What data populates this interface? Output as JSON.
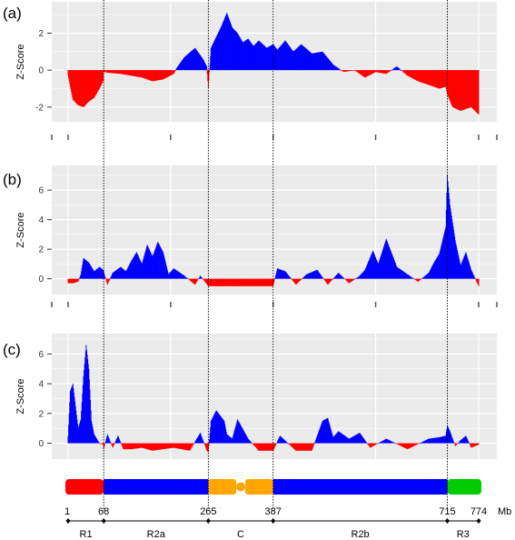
{
  "figure": {
    "colors": {
      "positive": "#0000ff",
      "negative": "#ff0000",
      "panel_bg": "#ebebeb",
      "grid": "#ffffff",
      "guide": "#000000",
      "region_colors": {
        "red": "#ff0000",
        "blue": "#0000ff",
        "orange": "#ffa500",
        "green": "#00cc00"
      }
    }
  },
  "chart_data": [
    {
      "panel": "(a)",
      "type": "area",
      "ylabel": "Z-Score",
      "yticks": [
        2,
        0,
        -2
      ],
      "ylim": [
        -2.5,
        3.4
      ],
      "xlim": [
        1,
        774
      ],
      "grid": true,
      "series": [
        {
          "x": [
            1,
            10,
            20,
            30,
            40,
            50,
            60,
            67,
            68,
            80,
            100,
            120,
            140,
            160,
            180,
            200,
            205,
            220,
            240,
            255,
            262,
            265,
            270,
            280,
            290,
            300,
            310,
            320,
            330,
            340,
            350,
            360,
            375,
            387,
            395,
            410,
            425,
            440,
            460,
            480,
            500,
            520,
            540,
            560,
            580,
            600,
            620,
            640,
            660,
            680,
            700,
            712,
            715,
            725,
            740,
            760,
            774
          ],
          "y": [
            -0.3,
            -1.6,
            -1.9,
            -2.0,
            -1.7,
            -1.5,
            -1.0,
            -0.6,
            -0.1,
            -0.15,
            -0.2,
            -0.3,
            -0.4,
            -0.6,
            -0.5,
            -0.2,
            0.1,
            0.7,
            1.2,
            0.6,
            0.2,
            -1.0,
            1.2,
            1.8,
            2.4,
            3.1,
            2.3,
            2.0,
            1.5,
            1.7,
            1.3,
            1.6,
            1.2,
            1.4,
            1.1,
            1.6,
            1.0,
            1.4,
            0.9,
            1.0,
            0.3,
            -0.1,
            0.0,
            -0.4,
            -0.1,
            -0.2,
            0.2,
            -0.3,
            -0.6,
            -0.8,
            -1.0,
            -0.9,
            -1.3,
            -2.0,
            -2.2,
            -2.0,
            -2.4
          ]
        }
      ]
    },
    {
      "panel": "(b)",
      "type": "area",
      "ylabel": "Z-Score",
      "yticks": [
        6,
        4,
        2,
        0
      ],
      "ylim": [
        -0.7,
        7.3
      ],
      "xlim": [
        1,
        774
      ],
      "grid": true,
      "series": [
        {
          "x": [
            1,
            10,
            20,
            25,
            30,
            40,
            50,
            60,
            67,
            75,
            85,
            100,
            110,
            120,
            130,
            140,
            150,
            160,
            170,
            180,
            190,
            200,
            220,
            240,
            250,
            265,
            300,
            350,
            387,
            395,
            410,
            430,
            450,
            470,
            490,
            510,
            530,
            550,
            560,
            575,
            585,
            600,
            620,
            640,
            660,
            680,
            690,
            700,
            712,
            715,
            720,
            730,
            740,
            750,
            760,
            774
          ],
          "y": [
            -0.3,
            -0.3,
            -0.2,
            0.3,
            1.4,
            1.1,
            0.5,
            0.8,
            0.6,
            -0.4,
            0.4,
            0.8,
            0.5,
            1.2,
            1.8,
            1.0,
            2.3,
            1.5,
            2.5,
            1.8,
            0.3,
            0.7,
            0.2,
            -0.4,
            0.2,
            -0.5,
            -0.5,
            -0.5,
            -0.5,
            0.7,
            0.5,
            -0.4,
            0.3,
            0.6,
            -0.4,
            0.4,
            -0.3,
            0.2,
            0.6,
            1.9,
            1.0,
            2.7,
            0.8,
            0.3,
            -0.2,
            0.4,
            1.1,
            1.7,
            3.5,
            7.0,
            5.0,
            2.6,
            0.9,
            1.8,
            0.6,
            -0.5
          ]
        }
      ]
    },
    {
      "panel": "(c)",
      "type": "area",
      "ylabel": "Z-Score",
      "yticks": [
        6,
        4,
        2,
        0
      ],
      "ylim": [
        -0.7,
        7.0
      ],
      "xlim": [
        1,
        774
      ],
      "grid": true,
      "series": [
        {
          "x": [
            1,
            5,
            10,
            15,
            20,
            25,
            30,
            35,
            40,
            45,
            50,
            55,
            60,
            67,
            68,
            75,
            85,
            95,
            105,
            120,
            140,
            160,
            180,
            200,
            230,
            250,
            262,
            265,
            270,
            280,
            295,
            300,
            310,
            320,
            340,
            360,
            387,
            400,
            430,
            460,
            480,
            490,
            500,
            510,
            530,
            550,
            570,
            600,
            640,
            680,
            700,
            712,
            715,
            720,
            730,
            740,
            750,
            760,
            774
          ],
          "y": [
            0.5,
            3.5,
            4.0,
            2.5,
            1.0,
            1.6,
            4.5,
            6.6,
            5.0,
            1.5,
            0.6,
            0.3,
            0.0,
            -0.1,
            -0.4,
            0.6,
            -0.3,
            0.5,
            -0.4,
            -0.4,
            -0.3,
            -0.5,
            -0.4,
            -0.3,
            -0.5,
            0.7,
            -0.5,
            -0.6,
            1.5,
            2.2,
            1.5,
            0.6,
            0.3,
            1.6,
            0.3,
            -0.5,
            -0.5,
            0.5,
            -0.5,
            -0.5,
            1.5,
            1.7,
            0.4,
            0.8,
            0.3,
            0.7,
            -0.3,
            0.3,
            -0.4,
            0.3,
            0.4,
            0.5,
            1.2,
            0.8,
            -0.2,
            0.2,
            0.5,
            -0.3,
            -0.1
          ]
        }
      ]
    }
  ],
  "map": {
    "unit": "Mb",
    "ticks": [
      "1",
      "68",
      "265",
      "387",
      "715",
      "774"
    ],
    "tick_values": [
      1,
      68,
      265,
      387,
      715,
      774
    ],
    "regions": [
      {
        "label": "R1",
        "start": 1,
        "end": 68,
        "color": "#ff0000"
      },
      {
        "label": "R2a",
        "start": 68,
        "end": 265,
        "color": "#0000ff"
      },
      {
        "label": "C",
        "start": 265,
        "end": 387,
        "color": "#ffa500"
      },
      {
        "label": "R2b",
        "start": 387,
        "end": 715,
        "color": "#0000ff"
      },
      {
        "label": "R3",
        "start": 715,
        "end": 774,
        "color": "#00cc00"
      }
    ],
    "centromere_position": 326,
    "guide_positions": [
      68,
      265,
      387,
      715
    ]
  }
}
